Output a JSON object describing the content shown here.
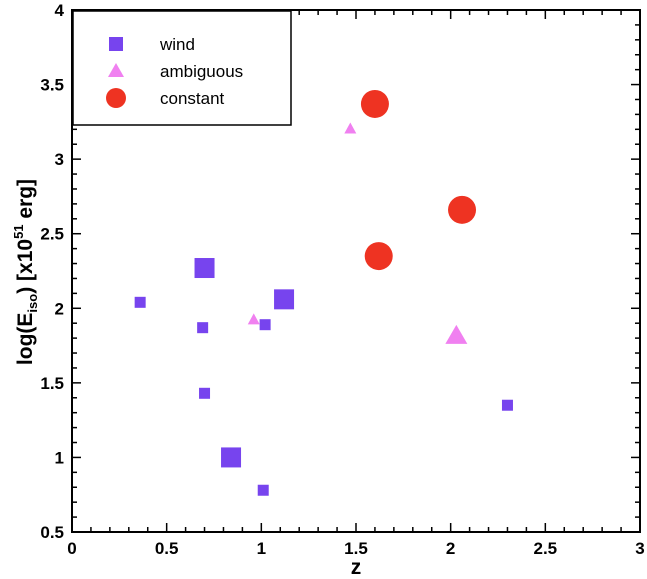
{
  "chart_data": {
    "type": "scatter",
    "xlabel": "z",
    "ylabel": {
      "prefix": "log(E",
      "subscript": "iso",
      "middle": ") [x10",
      "superscript": "51",
      "suffix": " erg]"
    },
    "xlim": [
      0,
      3
    ],
    "ylim": [
      0.5,
      4
    ],
    "x_ticks": [
      0,
      0.5,
      1,
      1.5,
      2,
      2.5,
      3
    ],
    "x_tick_labels": [
      "0",
      "0.5",
      "1",
      "1.5",
      "2",
      "2.5",
      "3"
    ],
    "y_ticks": [
      0.5,
      1,
      1.5,
      2,
      2.5,
      3,
      3.5,
      4
    ],
    "y_tick_labels": [
      "0.5",
      "1",
      "1.5",
      "2",
      "2.5",
      "3",
      "3.5",
      "4"
    ],
    "grid": false,
    "legend_position": "top-left",
    "series": [
      {
        "name": "wind",
        "marker": "square",
        "color": "#7744ee",
        "points": [
          {
            "x": 0.36,
            "y": 2.04,
            "size": "small"
          },
          {
            "x": 0.7,
            "y": 2.27,
            "size": "large"
          },
          {
            "x": 0.69,
            "y": 1.87,
            "size": "small"
          },
          {
            "x": 0.7,
            "y": 1.43,
            "size": "small"
          },
          {
            "x": 0.84,
            "y": 1.0,
            "size": "large"
          },
          {
            "x": 1.01,
            "y": 0.78,
            "size": "small"
          },
          {
            "x": 1.02,
            "y": 1.89,
            "size": "small"
          },
          {
            "x": 1.12,
            "y": 2.06,
            "size": "large"
          },
          {
            "x": 2.3,
            "y": 1.35,
            "size": "small"
          }
        ]
      },
      {
        "name": "ambiguous",
        "marker": "triangle",
        "color": "#f080f0",
        "points": [
          {
            "x": 0.96,
            "y": 1.92,
            "size": "small"
          },
          {
            "x": 1.47,
            "y": 3.2,
            "size": "small"
          },
          {
            "x": 2.03,
            "y": 1.81,
            "size": "large"
          }
        ]
      },
      {
        "name": "constant",
        "marker": "circle",
        "color": "#ee3322",
        "points": [
          {
            "x": 1.6,
            "y": 3.37,
            "size": "large"
          },
          {
            "x": 1.62,
            "y": 2.35,
            "size": "large"
          },
          {
            "x": 2.06,
            "y": 2.66,
            "size": "large"
          }
        ]
      }
    ]
  }
}
